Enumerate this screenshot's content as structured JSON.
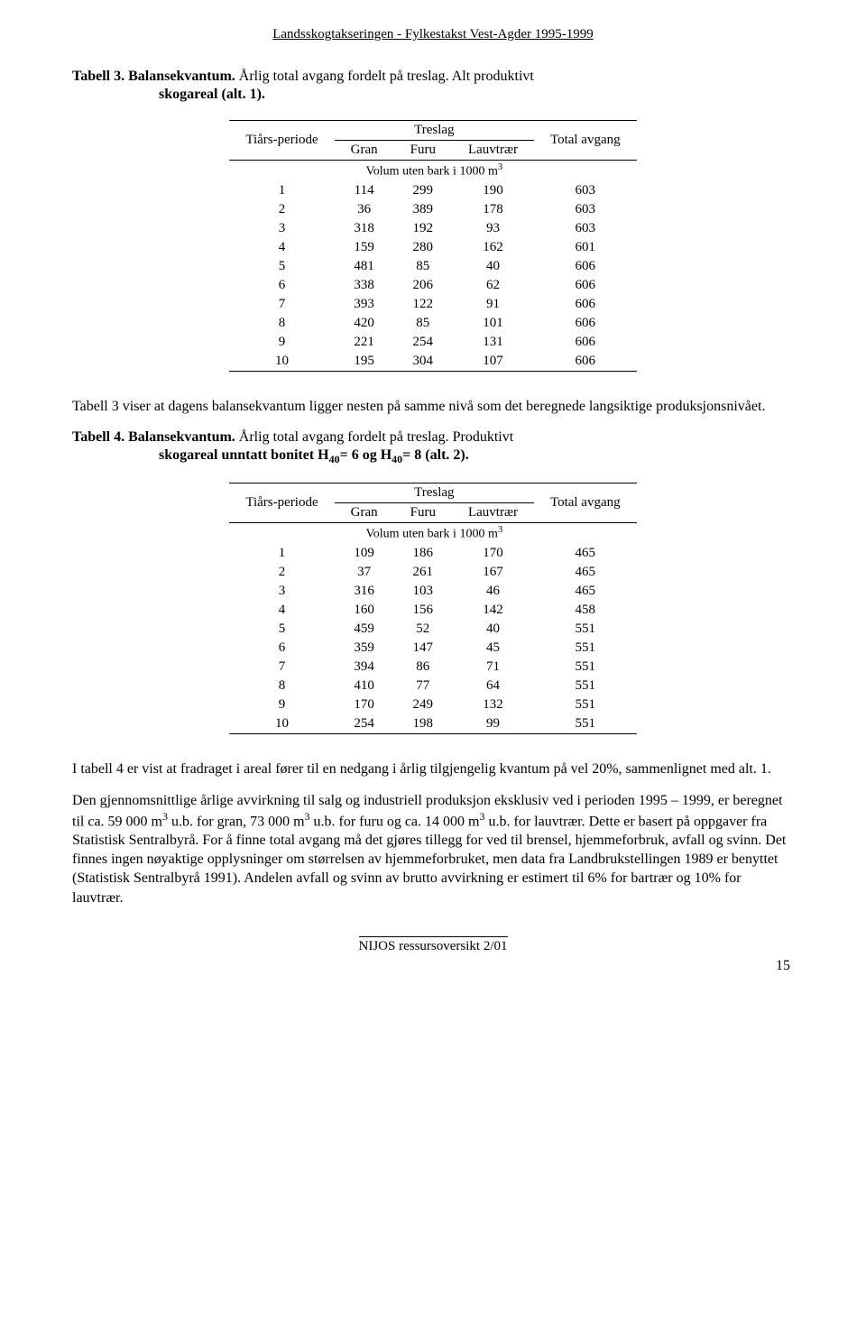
{
  "running_header": "Landsskogtakseringen - Fylkestakst Vest-Agder 1995-1999",
  "table3": {
    "caption_lead": "Tabell 3. Balansekvantum.",
    "caption_rest1": " Årlig total avgang fordelt på treslag. Alt produktivt",
    "caption_rest2": "skogareal (alt. 1).",
    "col_period": "Tiårs-periode",
    "group_label": "Treslag",
    "col_gran": "Gran",
    "col_furu": "Furu",
    "col_lauv": "Lauvtrær",
    "col_total": "Total avgang",
    "unit_line": "Volum uten bark i 1000 m",
    "unit_sup": "3",
    "rows": [
      {
        "p": "1",
        "g": "114",
        "f": "299",
        "l": "190",
        "t": "603"
      },
      {
        "p": "2",
        "g": "36",
        "f": "389",
        "l": "178",
        "t": "603"
      },
      {
        "p": "3",
        "g": "318",
        "f": "192",
        "l": "93",
        "t": "603"
      },
      {
        "p": "4",
        "g": "159",
        "f": "280",
        "l": "162",
        "t": "601"
      },
      {
        "p": "5",
        "g": "481",
        "f": "85",
        "l": "40",
        "t": "606"
      },
      {
        "p": "6",
        "g": "338",
        "f": "206",
        "l": "62",
        "t": "606"
      },
      {
        "p": "7",
        "g": "393",
        "f": "122",
        "l": "91",
        "t": "606"
      },
      {
        "p": "8",
        "g": "420",
        "f": "85",
        "l": "101",
        "t": "606"
      },
      {
        "p": "9",
        "g": "221",
        "f": "254",
        "l": "131",
        "t": "606"
      },
      {
        "p": "10",
        "g": "195",
        "f": "304",
        "l": "107",
        "t": "606"
      }
    ]
  },
  "para_between": "Tabell 3 viser at dagens balansekvantum ligger nesten på samme nivå som det beregnede langsiktige produksjonsnivået.",
  "table4": {
    "caption_lead": "Tabell 4. Balansekvantum.",
    "caption_rest1": " Årlig total avgang fordelt på treslag. Produktivt",
    "caption_rest2_a": "skogareal unntatt bonitet H",
    "caption_rest2_b": "= 6 og H",
    "caption_rest2_c": "= 8 (alt. 2).",
    "sub40": "40",
    "col_period": "Tiårs-periode",
    "group_label": "Treslag",
    "col_gran": "Gran",
    "col_furu": "Furu",
    "col_lauv": "Lauvtrær",
    "col_total": "Total avgang",
    "unit_line": "Volum uten bark i 1000 m",
    "unit_sup": "3",
    "rows": [
      {
        "p": "1",
        "g": "109",
        "f": "186",
        "l": "170",
        "t": "465"
      },
      {
        "p": "2",
        "g": "37",
        "f": "261",
        "l": "167",
        "t": "465"
      },
      {
        "p": "3",
        "g": "316",
        "f": "103",
        "l": "46",
        "t": "465"
      },
      {
        "p": "4",
        "g": "160",
        "f": "156",
        "l": "142",
        "t": "458"
      },
      {
        "p": "5",
        "g": "459",
        "f": "52",
        "l": "40",
        "t": "551"
      },
      {
        "p": "6",
        "g": "359",
        "f": "147",
        "l": "45",
        "t": "551"
      },
      {
        "p": "7",
        "g": "394",
        "f": "86",
        "l": "71",
        "t": "551"
      },
      {
        "p": "8",
        "g": "410",
        "f": "77",
        "l": "64",
        "t": "551"
      },
      {
        "p": "9",
        "g": "170",
        "f": "249",
        "l": "132",
        "t": "551"
      },
      {
        "p": "10",
        "g": "254",
        "f": "198",
        "l": "99",
        "t": "551"
      }
    ]
  },
  "para_after_t4": "I tabell 4 er vist at fradraget i areal fører til en nedgang i årlig tilgjengelig kvantum på vel 20%, sammenlignet med alt. 1.",
  "para2_parts": {
    "a": "Den gjennomsnittlige årlige avvirkning til salg og industriell produksjon eksklusiv ved i perioden 1995 – 1999, er beregnet til ca. 59 000 m",
    "b": " u.b. for gran, 73 000 m",
    "c": " u.b. for furu og ca. 14 000 m",
    "d": " u.b. for lauvtrær.  Dette er basert på oppgaver fra Statistisk Sentralbyrå.  For å finne total avgang må det gjøres tillegg for ved til brensel, hjemmeforbruk, avfall og svinn.  Det finnes ingen nøyaktige opplysninger om størrelsen av hjemmeforbruket, men data fra Landbrukstellingen 1989 er benyttet (Statistisk Sentralbyrå 1991). Andelen avfall og svinn av brutto avvirkning er estimert til 6% for bartrær og 10% for lauvtrær.",
    "sup3": "3"
  },
  "footer": "NIJOS ressursoversikt 2/01",
  "page_number": "15"
}
